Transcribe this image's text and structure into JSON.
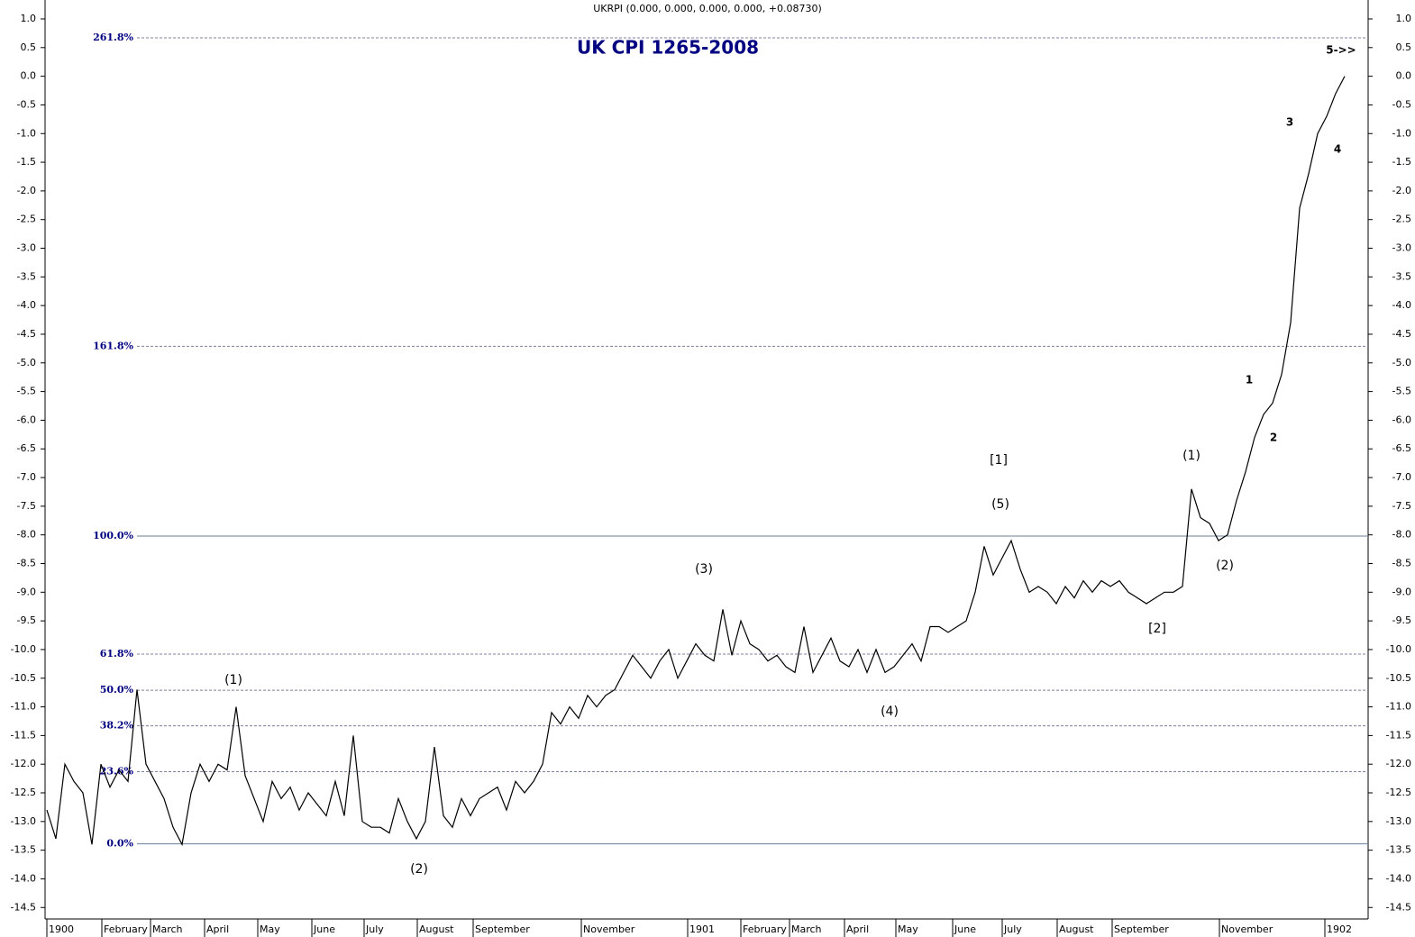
{
  "chart_data": {
    "type": "line",
    "header": "UKRPI (0.000, 0.000, 0.000, 0.000, +0.08730)",
    "title": "UK CPI 1265-2008",
    "color": "#000000",
    "values": [
      -12.8,
      -13.3,
      -12.0,
      -12.3,
      -12.5,
      -13.4,
      -12.0,
      -12.4,
      -12.1,
      -12.3,
      -10.7,
      -12.0,
      -12.3,
      -12.6,
      -13.1,
      -13.4,
      -12.5,
      -12.0,
      -12.3,
      -12.0,
      -12.1,
      -11.0,
      -12.2,
      -12.6,
      -13.0,
      -12.3,
      -12.6,
      -12.4,
      -12.8,
      -12.5,
      -12.7,
      -12.9,
      -12.3,
      -12.9,
      -11.5,
      -13.0,
      -13.1,
      -13.1,
      -13.2,
      -12.6,
      -13.0,
      -13.3,
      -13.0,
      -11.7,
      -12.9,
      -13.1,
      -12.6,
      -12.9,
      -12.6,
      -12.5,
      -12.4,
      -12.8,
      -12.3,
      -12.5,
      -12.3,
      -12.0,
      -11.1,
      -11.3,
      -11.0,
      -11.2,
      -10.8,
      -11.0,
      -10.8,
      -10.7,
      -10.4,
      -10.1,
      -10.3,
      -10.5,
      -10.2,
      -10.0,
      -10.5,
      -10.2,
      -9.9,
      -10.1,
      -10.2,
      -9.3,
      -10.1,
      -9.5,
      -9.9,
      -10.0,
      -10.2,
      -10.1,
      -10.3,
      -10.4,
      -9.6,
      -10.4,
      -10.1,
      -9.8,
      -10.2,
      -10.3,
      -10.0,
      -10.4,
      -10.0,
      -10.4,
      -10.3,
      -10.1,
      -9.9,
      -10.2,
      -9.6,
      -9.6,
      -9.7,
      -9.6,
      -9.5,
      -9.0,
      -8.2,
      -8.7,
      -8.4,
      -8.1,
      -8.6,
      -9.0,
      -8.9,
      -9.0,
      -9.2,
      -8.9,
      -9.1,
      -8.8,
      -9.0,
      -8.8,
      -8.9,
      -8.8,
      -9.0,
      -9.1,
      -9.2,
      -9.1,
      -9.0,
      -9.0,
      -8.9,
      -7.2,
      -7.7,
      -7.8,
      -8.1,
      -8.0,
      -7.4,
      -6.9,
      -6.3,
      -5.9,
      -5.7,
      -5.2,
      -4.3,
      -2.3,
      -1.7,
      -1.0,
      -0.7,
      -0.3,
      0.0
    ],
    "xlim": [
      -0.2,
      146.6
    ],
    "xticks": [
      {
        "value": 0,
        "label": "1900"
      },
      {
        "value": 6.1,
        "label": "February"
      },
      {
        "value": 11.5,
        "label": "March"
      },
      {
        "value": 17.5,
        "label": "April"
      },
      {
        "value": 23.4,
        "label": "May"
      },
      {
        "value": 29.4,
        "label": "June"
      },
      {
        "value": 35.2,
        "label": "July"
      },
      {
        "value": 41.1,
        "label": "August"
      },
      {
        "value": 47.3,
        "label": "September"
      },
      {
        "value": 59.3,
        "label": "November"
      },
      {
        "value": 71.1,
        "label": "1901"
      },
      {
        "value": 77,
        "label": "February"
      },
      {
        "value": 82.4,
        "label": "March"
      },
      {
        "value": 88.5,
        "label": "April"
      },
      {
        "value": 94.2,
        "label": "May"
      },
      {
        "value": 100.5,
        "label": "June"
      },
      {
        "value": 106,
        "label": "July"
      },
      {
        "value": 112.1,
        "label": "August"
      },
      {
        "value": 118.2,
        "label": "September"
      },
      {
        "value": 130.1,
        "label": "November"
      },
      {
        "value": 141.8,
        "label": "1902"
      }
    ],
    "ylim": [
      -14.7,
      1.33
    ],
    "yticks": [
      {
        "value": 1,
        "label": "1.0"
      },
      0.5,
      {
        "value": 0,
        "label": "0.0"
      },
      -0.5,
      {
        "value": -1,
        "label": "-1.0"
      },
      -1.5,
      {
        "value": -2,
        "label": "-2.0"
      },
      -2.5,
      {
        "value": -3,
        "label": "-3.0"
      },
      -3.5,
      {
        "value": -4,
        "label": "-4.0"
      },
      -4.5,
      {
        "value": -5,
        "label": "-5.0"
      },
      -5.5,
      {
        "value": -6,
        "label": "-6.0"
      },
      -6.5,
      {
        "value": -7,
        "label": "-7.0"
      },
      -7.5,
      {
        "value": -8,
        "label": "-8.0"
      },
      -8.5,
      {
        "value": -9,
        "label": "-9.0"
      },
      -9.5,
      {
        "value": -10,
        "label": "-10.0"
      },
      -10.5,
      {
        "value": -11,
        "label": "-11.0"
      },
      -11.5,
      {
        "value": -12,
        "label": "-12.0"
      },
      -12.5,
      {
        "value": -13,
        "label": "-13.0"
      },
      -13.5,
      {
        "value": -14,
        "label": "-14.0"
      },
      -14.5
    ],
    "levels": [
      {
        "label": "261.8%",
        "value": 0.67,
        "style": "dashed"
      },
      {
        "label": "161.8%",
        "value": -4.71,
        "style": "dashed"
      },
      {
        "label": "100.0%",
        "value": -8.02,
        "style": "solid"
      },
      {
        "label": "61.8%",
        "value": -10.08,
        "style": "dashed"
      },
      {
        "label": "50.0%",
        "value": -10.71,
        "style": "dashed"
      },
      {
        "label": "38.2%",
        "value": -11.33,
        "style": "dashed"
      },
      {
        "label": "23.6%",
        "value": -12.13,
        "style": "dashed"
      },
      {
        "label": "0.0%",
        "value": -13.39,
        "style": "solid"
      }
    ],
    "annotations": [
      {
        "text": "(1)",
        "color": "#000080"
      },
      {
        "text": "(2)",
        "color": "#000080"
      },
      {
        "text": "(3)",
        "color": "#000080"
      },
      {
        "text": "(4)",
        "color": "#000080"
      },
      {
        "text": "(5)",
        "color": "#000080"
      },
      {
        "text": "[1]",
        "color": "#808000"
      },
      {
        "text": "[2]",
        "color": "#808000"
      },
      {
        "text": "(1)",
        "color": "#000080"
      },
      {
        "text": "(2)",
        "color": "#000080"
      },
      {
        "text": "1",
        "color": "#008000"
      },
      {
        "text": "2",
        "color": "#008000"
      },
      {
        "text": "3",
        "color": "#008000"
      },
      {
        "text": "4",
        "color": "#008000"
      },
      {
        "text": "5->>",
        "color": "#008000"
      }
    ]
  }
}
